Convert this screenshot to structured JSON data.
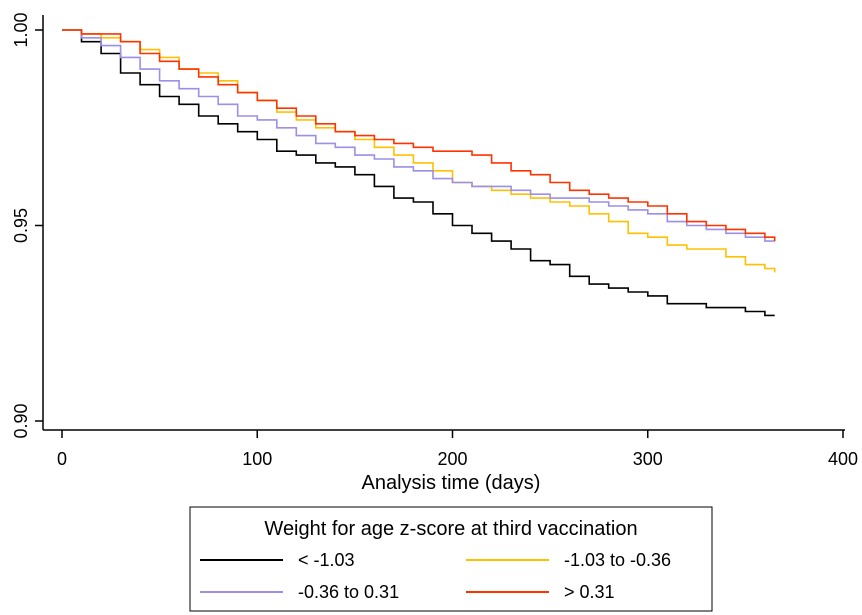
{
  "chart_data": {
    "type": "line",
    "xlabel": "Analysis time (days)",
    "ylabel": "",
    "xlim": [
      0,
      400
    ],
    "ylim": [
      0.9,
      1.0
    ],
    "xticks": [
      0,
      100,
      200,
      300,
      400
    ],
    "xtick_labels": [
      "0",
      "100",
      "200",
      "300",
      "400"
    ],
    "yticks": [
      0.9,
      0.95,
      1.0
    ],
    "ytick_labels": [
      "0.90",
      "0.95",
      "1.00"
    ],
    "grid": false,
    "legend_title": "Weight for age z-score at third vaccination",
    "legend_position": "bottom",
    "series": [
      {
        "name": "< -1.03",
        "color": "#000000",
        "x": [
          0,
          10,
          20,
          30,
          40,
          50,
          60,
          70,
          80,
          90,
          100,
          110,
          120,
          130,
          140,
          150,
          160,
          170,
          180,
          190,
          200,
          210,
          220,
          230,
          240,
          250,
          260,
          270,
          280,
          290,
          300,
          310,
          320,
          330,
          340,
          350,
          360,
          365
        ],
        "y": [
          1.0,
          0.997,
          0.994,
          0.989,
          0.986,
          0.983,
          0.981,
          0.978,
          0.976,
          0.974,
          0.972,
          0.969,
          0.968,
          0.966,
          0.965,
          0.963,
          0.96,
          0.957,
          0.956,
          0.953,
          0.95,
          0.948,
          0.946,
          0.944,
          0.941,
          0.94,
          0.937,
          0.935,
          0.934,
          0.933,
          0.932,
          0.93,
          0.93,
          0.929,
          0.929,
          0.928,
          0.927,
          0.927
        ]
      },
      {
        "name": "-1.03 to -0.36",
        "color": "#ffc000",
        "x": [
          0,
          10,
          20,
          30,
          40,
          50,
          60,
          70,
          80,
          90,
          100,
          110,
          120,
          130,
          140,
          150,
          160,
          170,
          180,
          190,
          200,
          210,
          220,
          230,
          240,
          250,
          260,
          270,
          280,
          290,
          300,
          310,
          320,
          330,
          340,
          350,
          360,
          365
        ],
        "y": [
          1.0,
          0.999,
          0.998,
          0.997,
          0.995,
          0.993,
          0.99,
          0.989,
          0.987,
          0.984,
          0.982,
          0.979,
          0.977,
          0.975,
          0.974,
          0.972,
          0.97,
          0.968,
          0.966,
          0.964,
          0.961,
          0.96,
          0.959,
          0.958,
          0.957,
          0.956,
          0.955,
          0.953,
          0.951,
          0.948,
          0.947,
          0.945,
          0.944,
          0.944,
          0.942,
          0.94,
          0.939,
          0.938
        ]
      },
      {
        "name": "-0.36 to 0.31",
        "color": "#9b8fe6",
        "x": [
          0,
          10,
          20,
          30,
          40,
          50,
          60,
          70,
          80,
          90,
          100,
          110,
          120,
          130,
          140,
          150,
          160,
          170,
          180,
          190,
          200,
          210,
          220,
          230,
          240,
          250,
          260,
          270,
          280,
          290,
          300,
          310,
          320,
          330,
          340,
          350,
          360,
          365
        ],
        "y": [
          1.0,
          0.998,
          0.996,
          0.993,
          0.99,
          0.987,
          0.985,
          0.983,
          0.981,
          0.978,
          0.977,
          0.975,
          0.973,
          0.971,
          0.97,
          0.968,
          0.967,
          0.965,
          0.964,
          0.962,
          0.961,
          0.96,
          0.96,
          0.959,
          0.958,
          0.957,
          0.957,
          0.956,
          0.955,
          0.954,
          0.953,
          0.951,
          0.95,
          0.949,
          0.948,
          0.947,
          0.946,
          0.946
        ]
      },
      {
        "name": "> 0.31",
        "color": "#ff3300",
        "x": [
          0,
          10,
          20,
          30,
          40,
          50,
          60,
          70,
          80,
          90,
          100,
          110,
          120,
          130,
          140,
          150,
          160,
          170,
          180,
          190,
          200,
          210,
          220,
          230,
          240,
          250,
          260,
          270,
          280,
          290,
          300,
          310,
          320,
          330,
          340,
          350,
          360,
          365
        ],
        "y": [
          1.0,
          0.999,
          0.999,
          0.997,
          0.994,
          0.992,
          0.99,
          0.988,
          0.986,
          0.984,
          0.982,
          0.98,
          0.978,
          0.976,
          0.974,
          0.973,
          0.972,
          0.971,
          0.97,
          0.969,
          0.969,
          0.968,
          0.966,
          0.964,
          0.963,
          0.961,
          0.959,
          0.958,
          0.957,
          0.956,
          0.955,
          0.953,
          0.951,
          0.95,
          0.949,
          0.948,
          0.947,
          0.946
        ]
      }
    ]
  }
}
